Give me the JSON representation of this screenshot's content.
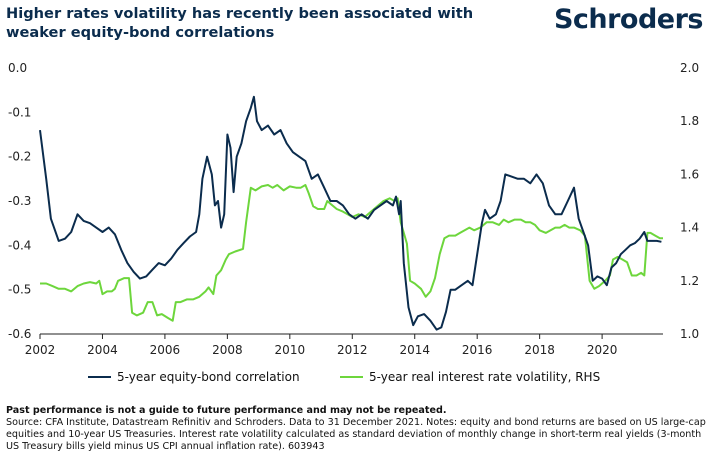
{
  "header": {
    "title": "Higher rates volatility has recently been associated with weaker equity-bond correlations",
    "logo_text": "Schroders"
  },
  "chart_data": {
    "type": "line",
    "title": "Higher rates volatility has recently been associated with weaker equity-bond correlations",
    "x_range": [
      2002.0,
      2021.95
    ],
    "x_ticks": [
      "2002",
      "2004",
      "2006",
      "2008",
      "2010",
      "2012",
      "2014",
      "2016",
      "2018",
      "2020"
    ],
    "y_left": {
      "range": [
        -0.6,
        0.0
      ],
      "ticks": [
        "0.0",
        "-0.1",
        "-0.2",
        "-0.3",
        "-0.4",
        "-0.5",
        "-0.6"
      ]
    },
    "y_right": {
      "range": [
        1.0,
        2.0
      ],
      "ticks": [
        "2.0",
        "1.8",
        "1.6",
        "1.4",
        "1.2",
        "1.0"
      ]
    },
    "grid": false,
    "legend_position": "bottom",
    "series": [
      {
        "name": "5-year equity-bond correlation",
        "axis": "left",
        "color": "#0b2c4d",
        "points": [
          [
            2002.0,
            -0.14
          ],
          [
            2002.2,
            -0.25
          ],
          [
            2002.35,
            -0.34
          ],
          [
            2002.6,
            -0.39
          ],
          [
            2002.8,
            -0.385
          ],
          [
            2003.0,
            -0.37
          ],
          [
            2003.2,
            -0.33
          ],
          [
            2003.4,
            -0.345
          ],
          [
            2003.6,
            -0.35
          ],
          [
            2003.8,
            -0.36
          ],
          [
            2004.0,
            -0.37
          ],
          [
            2004.2,
            -0.36
          ],
          [
            2004.4,
            -0.375
          ],
          [
            2004.6,
            -0.41
          ],
          [
            2004.8,
            -0.44
          ],
          [
            2005.0,
            -0.46
          ],
          [
            2005.2,
            -0.475
          ],
          [
            2005.4,
            -0.47
          ],
          [
            2005.6,
            -0.455
          ],
          [
            2005.8,
            -0.44
          ],
          [
            2006.0,
            -0.445
          ],
          [
            2006.2,
            -0.43
          ],
          [
            2006.4,
            -0.41
          ],
          [
            2006.6,
            -0.395
          ],
          [
            2006.8,
            -0.38
          ],
          [
            2007.0,
            -0.37
          ],
          [
            2007.1,
            -0.33
          ],
          [
            2007.2,
            -0.25
          ],
          [
            2007.35,
            -0.2
          ],
          [
            2007.5,
            -0.24
          ],
          [
            2007.6,
            -0.31
          ],
          [
            2007.7,
            -0.3
          ],
          [
            2007.8,
            -0.36
          ],
          [
            2007.9,
            -0.33
          ],
          [
            2008.0,
            -0.15
          ],
          [
            2008.1,
            -0.18
          ],
          [
            2008.2,
            -0.28
          ],
          [
            2008.3,
            -0.2
          ],
          [
            2008.45,
            -0.17
          ],
          [
            2008.6,
            -0.12
          ],
          [
            2008.75,
            -0.09
          ],
          [
            2008.85,
            -0.065
          ],
          [
            2008.95,
            -0.12
          ],
          [
            2009.1,
            -0.14
          ],
          [
            2009.3,
            -0.13
          ],
          [
            2009.5,
            -0.15
          ],
          [
            2009.7,
            -0.14
          ],
          [
            2009.9,
            -0.17
          ],
          [
            2010.1,
            -0.19
          ],
          [
            2010.3,
            -0.2
          ],
          [
            2010.5,
            -0.21
          ],
          [
            2010.7,
            -0.25
          ],
          [
            2010.9,
            -0.24
          ],
          [
            2011.1,
            -0.27
          ],
          [
            2011.3,
            -0.3
          ],
          [
            2011.5,
            -0.3
          ],
          [
            2011.7,
            -0.31
          ],
          [
            2011.9,
            -0.33
          ],
          [
            2012.1,
            -0.34
          ],
          [
            2012.3,
            -0.33
          ],
          [
            2012.5,
            -0.34
          ],
          [
            2012.7,
            -0.32
          ],
          [
            2012.9,
            -0.31
          ],
          [
            2013.1,
            -0.3
          ],
          [
            2013.3,
            -0.31
          ],
          [
            2013.4,
            -0.29
          ],
          [
            2013.5,
            -0.33
          ],
          [
            2013.55,
            -0.3
          ],
          [
            2013.65,
            -0.44
          ],
          [
            2013.8,
            -0.54
          ],
          [
            2013.95,
            -0.58
          ],
          [
            2014.1,
            -0.56
          ],
          [
            2014.3,
            -0.555
          ],
          [
            2014.5,
            -0.57
          ],
          [
            2014.7,
            -0.59
          ],
          [
            2014.85,
            -0.585
          ],
          [
            2015.0,
            -0.55
          ],
          [
            2015.15,
            -0.5
          ],
          [
            2015.3,
            -0.5
          ],
          [
            2015.5,
            -0.49
          ],
          [
            2015.7,
            -0.48
          ],
          [
            2015.85,
            -0.49
          ],
          [
            2016.0,
            -0.42
          ],
          [
            2016.15,
            -0.35
          ],
          [
            2016.25,
            -0.32
          ],
          [
            2016.4,
            -0.34
          ],
          [
            2016.6,
            -0.33
          ],
          [
            2016.75,
            -0.3
          ],
          [
            2016.9,
            -0.24
          ],
          [
            2017.1,
            -0.245
          ],
          [
            2017.3,
            -0.25
          ],
          [
            2017.5,
            -0.25
          ],
          [
            2017.7,
            -0.26
          ],
          [
            2017.9,
            -0.24
          ],
          [
            2018.1,
            -0.26
          ],
          [
            2018.3,
            -0.31
          ],
          [
            2018.5,
            -0.33
          ],
          [
            2018.7,
            -0.33
          ],
          [
            2018.9,
            -0.3
          ],
          [
            2019.1,
            -0.27
          ],
          [
            2019.25,
            -0.34
          ],
          [
            2019.4,
            -0.37
          ],
          [
            2019.55,
            -0.4
          ],
          [
            2019.7,
            -0.48
          ],
          [
            2019.85,
            -0.47
          ],
          [
            2020.0,
            -0.475
          ],
          [
            2020.15,
            -0.49
          ],
          [
            2020.3,
            -0.45
          ],
          [
            2020.45,
            -0.44
          ],
          [
            2020.6,
            -0.42
          ],
          [
            2020.75,
            -0.41
          ],
          [
            2020.9,
            -0.4
          ],
          [
            2021.05,
            -0.395
          ],
          [
            2021.2,
            -0.385
          ],
          [
            2021.35,
            -0.37
          ],
          [
            2021.45,
            -0.39
          ],
          [
            2021.6,
            -0.39
          ],
          [
            2021.75,
            -0.39
          ],
          [
            2021.9,
            -0.392
          ]
        ]
      },
      {
        "name": "5-year real interest rate volatility, RHS",
        "axis": "right",
        "color": "#6dd63c",
        "points": [
          [
            2002.0,
            1.19
          ],
          [
            2002.2,
            1.19
          ],
          [
            2002.4,
            1.18
          ],
          [
            2002.6,
            1.17
          ],
          [
            2002.8,
            1.17
          ],
          [
            2003.0,
            1.16
          ],
          [
            2003.2,
            1.18
          ],
          [
            2003.4,
            1.19
          ],
          [
            2003.6,
            1.195
          ],
          [
            2003.8,
            1.19
          ],
          [
            2003.9,
            1.2
          ],
          [
            2004.0,
            1.15
          ],
          [
            2004.15,
            1.16
          ],
          [
            2004.3,
            1.16
          ],
          [
            2004.4,
            1.17
          ],
          [
            2004.5,
            1.2
          ],
          [
            2004.7,
            1.21
          ],
          [
            2004.85,
            1.21
          ],
          [
            2004.95,
            1.08
          ],
          [
            2005.1,
            1.07
          ],
          [
            2005.3,
            1.08
          ],
          [
            2005.45,
            1.12
          ],
          [
            2005.6,
            1.12
          ],
          [
            2005.75,
            1.07
          ],
          [
            2005.9,
            1.075
          ],
          [
            2006.1,
            1.06
          ],
          [
            2006.25,
            1.05
          ],
          [
            2006.35,
            1.12
          ],
          [
            2006.5,
            1.12
          ],
          [
            2006.7,
            1.13
          ],
          [
            2006.9,
            1.13
          ],
          [
            2007.1,
            1.14
          ],
          [
            2007.3,
            1.16
          ],
          [
            2007.4,
            1.175
          ],
          [
            2007.55,
            1.15
          ],
          [
            2007.65,
            1.22
          ],
          [
            2007.8,
            1.24
          ],
          [
            2007.95,
            1.28
          ],
          [
            2008.05,
            1.3
          ],
          [
            2008.25,
            1.31
          ],
          [
            2008.5,
            1.32
          ],
          [
            2008.6,
            1.42
          ],
          [
            2008.75,
            1.55
          ],
          [
            2008.9,
            1.54
          ],
          [
            2009.1,
            1.555
          ],
          [
            2009.3,
            1.56
          ],
          [
            2009.45,
            1.55
          ],
          [
            2009.6,
            1.56
          ],
          [
            2009.8,
            1.54
          ],
          [
            2010.0,
            1.555
          ],
          [
            2010.2,
            1.55
          ],
          [
            2010.35,
            1.55
          ],
          [
            2010.5,
            1.56
          ],
          [
            2010.6,
            1.53
          ],
          [
            2010.75,
            1.48
          ],
          [
            2010.9,
            1.47
          ],
          [
            2011.1,
            1.47
          ],
          [
            2011.2,
            1.5
          ],
          [
            2011.3,
            1.49
          ],
          [
            2011.5,
            1.47
          ],
          [
            2011.7,
            1.46
          ],
          [
            2011.85,
            1.45
          ],
          [
            2012.0,
            1.44
          ],
          [
            2012.2,
            1.45
          ],
          [
            2012.4,
            1.44
          ],
          [
            2012.6,
            1.46
          ],
          [
            2012.8,
            1.48
          ],
          [
            2013.0,
            1.5
          ],
          [
            2013.2,
            1.51
          ],
          [
            2013.35,
            1.5
          ],
          [
            2013.45,
            1.51
          ],
          [
            2013.55,
            1.42
          ],
          [
            2013.65,
            1.38
          ],
          [
            2013.75,
            1.34
          ],
          [
            2013.85,
            1.2
          ],
          [
            2014.0,
            1.19
          ],
          [
            2014.2,
            1.17
          ],
          [
            2014.35,
            1.14
          ],
          [
            2014.5,
            1.16
          ],
          [
            2014.65,
            1.21
          ],
          [
            2014.8,
            1.3
          ],
          [
            2014.95,
            1.36
          ],
          [
            2015.1,
            1.37
          ],
          [
            2015.3,
            1.37
          ],
          [
            2015.45,
            1.38
          ],
          [
            2015.6,
            1.39
          ],
          [
            2015.75,
            1.4
          ],
          [
            2015.9,
            1.39
          ],
          [
            2016.1,
            1.4
          ],
          [
            2016.3,
            1.42
          ],
          [
            2016.5,
            1.42
          ],
          [
            2016.7,
            1.41
          ],
          [
            2016.85,
            1.43
          ],
          [
            2017.0,
            1.42
          ],
          [
            2017.2,
            1.43
          ],
          [
            2017.4,
            1.43
          ],
          [
            2017.55,
            1.42
          ],
          [
            2017.7,
            1.42
          ],
          [
            2017.85,
            1.41
          ],
          [
            2018.0,
            1.39
          ],
          [
            2018.2,
            1.38
          ],
          [
            2018.35,
            1.39
          ],
          [
            2018.5,
            1.4
          ],
          [
            2018.65,
            1.4
          ],
          [
            2018.8,
            1.41
          ],
          [
            2018.95,
            1.4
          ],
          [
            2019.1,
            1.4
          ],
          [
            2019.3,
            1.39
          ],
          [
            2019.45,
            1.37
          ],
          [
            2019.6,
            1.2
          ],
          [
            2019.75,
            1.17
          ],
          [
            2019.9,
            1.18
          ],
          [
            2020.1,
            1.2
          ],
          [
            2020.25,
            1.22
          ],
          [
            2020.35,
            1.28
          ],
          [
            2020.5,
            1.29
          ],
          [
            2020.65,
            1.28
          ],
          [
            2020.8,
            1.27
          ],
          [
            2020.95,
            1.22
          ],
          [
            2021.1,
            1.22
          ],
          [
            2021.25,
            1.23
          ],
          [
            2021.35,
            1.22
          ],
          [
            2021.45,
            1.38
          ],
          [
            2021.55,
            1.38
          ],
          [
            2021.7,
            1.37
          ],
          [
            2021.85,
            1.36
          ],
          [
            2021.95,
            1.36
          ]
        ]
      }
    ]
  },
  "footer": {
    "disclaimer": "Past performance is not a guide to future performance and may not be repeated.",
    "source": "Source: CFA Institute, Datastream Refinitiv and Schroders. Data to 31 December 2021. Notes: equity and bond returns are based on US large-cap equities and 10-year US Treasuries. Interest rate volatility calculated as standard deviation of monthly change in short-term real yields (3-month US Treasury bills yield minus US CPI annual inflation rate). 603943"
  }
}
